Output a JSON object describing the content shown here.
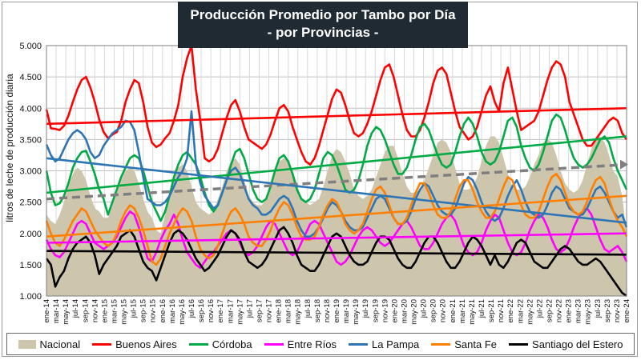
{
  "title": {
    "line1": "Producción Promedio por Tambo por Día",
    "line2": "- por Provincias -"
  },
  "chart_data": {
    "type": "line",
    "ylabel": "litros de leche de producción diaria",
    "ylim": [
      1000,
      5000
    ],
    "yticks": [
      1000,
      1500,
      2000,
      2500,
      3000,
      3500,
      4000,
      4500,
      5000
    ],
    "ytick_labels": [
      "1.000",
      "1.500",
      "2.000",
      "2.500",
      "3.000",
      "3.500",
      "4.000",
      "4.500",
      "5.000"
    ],
    "grid": true,
    "legend_position": "bottom",
    "x_tick_labels": [
      "ene-14",
      "mar-14",
      "may-14",
      "jul-14",
      "sep-14",
      "nov-14",
      "ene-15",
      "mar-15",
      "may-15",
      "jul-15",
      "sep-15",
      "nov-15",
      "ene-16",
      "mar-16",
      "may-16",
      "jul-16",
      "sep-16",
      "nov-16",
      "ene-17",
      "mar-17",
      "may-17",
      "jul-17",
      "sep-17",
      "nov-17",
      "ene-18",
      "mar-18",
      "may-18",
      "jul-18",
      "sep-18",
      "nov-18",
      "ene-19",
      "mar-19",
      "may-19",
      "jul-19",
      "sep-19",
      "nov-19",
      "ene-20",
      "mar-20",
      "may-20",
      "jul-20",
      "sep-20",
      "nov-20",
      "ene-21",
      "mar-21",
      "may-21",
      "jul-21",
      "sep-21",
      "nov-21",
      "ene-22",
      "mar-22",
      "may-22",
      "jul-22",
      "sep-22",
      "nov-22",
      "ene-23",
      "mar-23",
      "may-23",
      "jul-23",
      "sep-23",
      "nov-23",
      "ene-24"
    ],
    "series": [
      {
        "name": "Nacional",
        "kind": "area",
        "color": "#cdc5ac",
        "trend": {
          "start": 2550,
          "end": 3100,
          "color": "#7f7f7f",
          "dashed": true
        },
        "values": [
          2300,
          2200,
          2150,
          2300,
          2500,
          2750,
          2950,
          3050,
          3000,
          2850,
          2600,
          2400,
          2350,
          2250,
          2250,
          2450,
          2650,
          2850,
          3000,
          3050,
          3000,
          2800,
          2550,
          2350,
          2250,
          2050,
          2000,
          2300,
          2550,
          2850,
          3050,
          3100,
          3000,
          2750,
          2500,
          2400,
          2350,
          2300,
          2350,
          2550,
          2750,
          3000,
          3150,
          3200,
          3100,
          2850,
          2600,
          2500,
          2450,
          2450,
          2550,
          2800,
          2950,
          3150,
          3200,
          3150,
          3000,
          2800,
          2550,
          2500,
          2450,
          2500,
          2550,
          2750,
          3000,
          3250,
          3350,
          3300,
          3150,
          2950,
          2700,
          2600,
          2550,
          2600,
          2700,
          2900,
          3100,
          3300,
          3400,
          3400,
          3200,
          2950,
          2750,
          2650,
          2650,
          2700,
          2850,
          3050,
          3250,
          3450,
          3500,
          3450,
          3300,
          3050,
          2800,
          2700,
          2700,
          2750,
          2900,
          3150,
          3400,
          3550,
          3550,
          3450,
          3200,
          2950,
          2750,
          2700,
          2700,
          2750,
          2900,
          3100,
          3250,
          3450,
          3500,
          3450,
          3250,
          3000,
          2800,
          2700,
          2650,
          2700,
          2850,
          3100,
          3350,
          3500,
          3550,
          3450,
          3250,
          3000,
          2900,
          2600,
          2000
        ]
      },
      {
        "name": "Buenos Aires",
        "kind": "line",
        "color": "#ff0000",
        "trend": {
          "start": 3750,
          "end": 4000
        },
        "values": [
          3980,
          3680,
          3670,
          3650,
          3720,
          3880,
          4100,
          4300,
          4450,
          4500,
          4330,
          4100,
          3820,
          3620,
          3520,
          3580,
          3620,
          3800,
          4100,
          4300,
          4450,
          4400,
          4100,
          3700,
          3450,
          3380,
          3420,
          3520,
          3600,
          3800,
          4050,
          4500,
          4800,
          5000,
          4300,
          3800,
          3200,
          3150,
          3200,
          3350,
          3600,
          3850,
          4050,
          4130,
          3950,
          3700,
          3500,
          3450,
          3400,
          3350,
          3420,
          3580,
          3800,
          4000,
          4050,
          3950,
          3700,
          3500,
          3300,
          3150,
          3100,
          3200,
          3400,
          3650,
          3900,
          4150,
          4300,
          4250,
          4050,
          3800,
          3600,
          3550,
          3600,
          3750,
          3950,
          4200,
          4450,
          4650,
          4700,
          4500,
          4200,
          3900,
          3650,
          3550,
          3550,
          3650,
          3850,
          4100,
          4400,
          4600,
          4650,
          4550,
          4250,
          3950,
          3700,
          3600,
          3500,
          3550,
          3700,
          3950,
          4200,
          4350,
          4100,
          3950,
          4400,
          4650,
          4300,
          3950,
          3650,
          3700,
          3750,
          3800,
          3950,
          4200,
          4450,
          4650,
          4750,
          4700,
          4500,
          4100,
          3900,
          3700,
          3500,
          3400,
          3400,
          3500,
          3600,
          3700,
          3800,
          3850,
          3800,
          3600,
          3500
        ]
      },
      {
        "name": "Córdoba",
        "kind": "line",
        "color": "#00aa44",
        "trend": {
          "start": 2650,
          "end": 3550
        },
        "values": [
          3000,
          2650,
          2450,
          2480,
          2600,
          2800,
          3050,
          3200,
          3300,
          3320,
          3150,
          2950,
          2700,
          2550,
          2300,
          2500,
          2700,
          2900,
          3050,
          3200,
          3250,
          3200,
          3000,
          2750,
          2500,
          2350,
          2200,
          2350,
          2600,
          2900,
          3100,
          3250,
          3300,
          3200,
          3100,
          2900,
          2650,
          2450,
          2350,
          2450,
          2650,
          2850,
          3100,
          3300,
          3350,
          3200,
          2950,
          2700,
          2550,
          2500,
          2550,
          2750,
          3000,
          3200,
          3250,
          3150,
          2950,
          2700,
          2550,
          2500,
          2550,
          2700,
          2950,
          3200,
          3300,
          3250,
          3100,
          2900,
          2700,
          2650,
          2700,
          2850,
          3100,
          3400,
          3600,
          3700,
          3650,
          3500,
          3300,
          3100,
          2950,
          2950,
          3050,
          3250,
          3500,
          3700,
          3750,
          3650,
          3450,
          3250,
          3100,
          3050,
          3100,
          3300,
          3550,
          3750,
          3850,
          3750,
          3550,
          3300,
          3150,
          3100,
          3150,
          3300,
          3550,
          3800,
          3850,
          3700,
          3400,
          3200,
          3050,
          3000,
          3100,
          3300,
          3550,
          3800,
          3900,
          3850,
          3650,
          3400,
          3200,
          3100,
          3050,
          3100,
          3200,
          3350,
          3500,
          3550,
          3450,
          3200,
          3000,
          2850,
          2700
        ]
      },
      {
        "name": "Entre Ríos",
        "kind": "line",
        "color": "#ff00ff",
        "trend": {
          "start": 1850,
          "end": 2000
        },
        "values": [
          1900,
          1750,
          1650,
          1620,
          1700,
          1850,
          2000,
          2150,
          2200,
          2150,
          2000,
          1850,
          1800,
          1750,
          1800,
          1850,
          1950,
          2100,
          2250,
          2350,
          2300,
          2100,
          1850,
          1600,
          1550,
          1700,
          1900,
          2050,
          2150,
          2300,
          2150,
          1900,
          1700,
          1600,
          1500,
          1450,
          1550,
          1650,
          1700,
          1800,
          1900,
          2000,
          2050,
          2000,
          1850,
          1700,
          1650,
          1700,
          1800,
          1950,
          2100,
          2200,
          2150,
          2000,
          1850,
          1700,
          1650,
          1700,
          1850,
          2000,
          2150,
          2200,
          2150,
          2000,
          1850,
          1700,
          1550,
          1500,
          1550,
          1650,
          1800,
          1950,
          2050,
          2100,
          2050,
          1950,
          1850,
          1800,
          1850,
          1950,
          2050,
          2150,
          2200,
          2100,
          1950,
          1800,
          1750,
          1750,
          1850,
          2000,
          2150,
          2250,
          2300,
          2200,
          2000,
          1800,
          1700,
          1650,
          1700,
          1850,
          2050,
          2200,
          2300,
          2250,
          2050,
          1850,
          1700,
          1650,
          1700,
          1850,
          2050,
          2200,
          2300,
          2250,
          2100,
          1900,
          1750,
          1700,
          1750,
          1900,
          2100,
          2250,
          2350,
          2400,
          2300,
          2100,
          1900,
          1750,
          1700,
          1750,
          1800,
          1700,
          1550
        ]
      },
      {
        "name": "La Pampa",
        "kind": "line",
        "color": "#2e75b6",
        "trend": {
          "start": 3200,
          "end": 2170
        },
        "values": [
          3420,
          3250,
          3150,
          3200,
          3350,
          3500,
          3600,
          3650,
          3600,
          3500,
          3300,
          3200,
          3250,
          3400,
          3500,
          3600,
          3650,
          3700,
          3800,
          3780,
          3650,
          3300,
          2900,
          2550,
          2500,
          2450,
          2450,
          2500,
          2600,
          2750,
          2900,
          3000,
          3200,
          3950,
          3100,
          2800,
          2600,
          2500,
          2400,
          2450,
          2650,
          2850,
          3000,
          3050,
          2950,
          2750,
          2550,
          2450,
          2400,
          2300,
          2300,
          2350,
          2450,
          2550,
          2600,
          2550,
          2400,
          2200,
          2050,
          1950,
          1950,
          2000,
          2100,
          2250,
          2400,
          2500,
          2450,
          2350,
          2200,
          2100,
          2050,
          2050,
          2100,
          2250,
          2400,
          2550,
          2600,
          2550,
          2400,
          2250,
          2150,
          2150,
          2200,
          2350,
          2550,
          2700,
          2800,
          2750,
          2600,
          2450,
          2350,
          2300,
          2300,
          2400,
          2600,
          2800,
          2900,
          2850,
          2700,
          2500,
          2350,
          2250,
          2200,
          2250,
          2400,
          2600,
          2750,
          2850,
          2700,
          2500,
          2350,
          2300,
          2250,
          2300,
          2450,
          2650,
          2750,
          2700,
          2550,
          2400,
          2350,
          2300,
          2300,
          2400,
          2550,
          2700,
          2750,
          2650,
          2500,
          2350,
          2250,
          2300,
          2100
        ]
      },
      {
        "name": "Santa Fe",
        "kind": "line",
        "color": "#ff8000",
        "trend": {
          "start": 1950,
          "end": 2600
        },
        "values": [
          2200,
          2000,
          1850,
          1800,
          1900,
          2050,
          2200,
          2300,
          2400,
          2350,
          2200,
          2050,
          1950,
          1850,
          1800,
          1850,
          2000,
          2200,
          2350,
          2450,
          2400,
          2250,
          2050,
          1800,
          1550,
          1500,
          1600,
          1800,
          2000,
          2150,
          2300,
          2400,
          2350,
          2200,
          1950,
          1750,
          1650,
          1600,
          1650,
          1800,
          2000,
          2200,
          2350,
          2400,
          2300,
          2150,
          1950,
          1850,
          1800,
          1800,
          1900,
          2050,
          2250,
          2400,
          2500,
          2450,
          2300,
          2100,
          1950,
          1900,
          1900,
          1950,
          2100,
          2300,
          2450,
          2550,
          2500,
          2350,
          2150,
          2050,
          2000,
          2050,
          2150,
          2350,
          2550,
          2700,
          2750,
          2650,
          2450,
          2250,
          2150,
          2150,
          2250,
          2450,
          2650,
          2800,
          2800,
          2650,
          2450,
          2300,
          2250,
          2250,
          2350,
          2550,
          2750,
          2850,
          2850,
          2700,
          2500,
          2350,
          2250,
          2250,
          2350,
          2550,
          2750,
          2900,
          2850,
          2650,
          2450,
          2300,
          2250,
          2250,
          2350,
          2550,
          2750,
          2900,
          2950,
          2850,
          2650,
          2450,
          2350,
          2300,
          2350,
          2500,
          2700,
          2850,
          2900,
          2800,
          2550,
          2350,
          2200,
          2100,
          1950
        ]
      },
      {
        "name": "Santiago del Estero",
        "kind": "line",
        "color": "#000000",
        "trend": {
          "start": 1720,
          "end": 1660
        },
        "values": [
          1600,
          1500,
          1150,
          1300,
          1400,
          1600,
          1750,
          1850,
          1900,
          1950,
          1850,
          1650,
          1350,
          1500,
          1600,
          1700,
          1800,
          1950,
          2000,
          2050,
          1950,
          1750,
          1550,
          1450,
          1400,
          1250,
          1450,
          1650,
          1850,
          2000,
          2050,
          2000,
          1900,
          1750,
          1600,
          1500,
          1400,
          1450,
          1550,
          1650,
          1800,
          1950,
          2050,
          2000,
          1900,
          1700,
          1550,
          1500,
          1450,
          1500,
          1600,
          1750,
          1900,
          2050,
          2100,
          2000,
          1850,
          1650,
          1500,
          1450,
          1400,
          1400,
          1500,
          1650,
          1800,
          1950,
          2000,
          1950,
          1800,
          1650,
          1550,
          1500,
          1500,
          1550,
          1700,
          1850,
          1950,
          1950,
          1900,
          1750,
          1600,
          1500,
          1450,
          1450,
          1550,
          1700,
          1850,
          1950,
          1950,
          1850,
          1700,
          1550,
          1450,
          1450,
          1550,
          1700,
          1850,
          1950,
          1900,
          1800,
          1650,
          1500,
          1650,
          1500,
          1450,
          1550,
          1700,
          1850,
          1900,
          1850,
          1700,
          1550,
          1500,
          1450,
          1450,
          1550,
          1650,
          1750,
          1800,
          1750,
          1650,
          1550,
          1500,
          1500,
          1550,
          1600,
          1550,
          1450,
          1350,
          1250,
          1150,
          1050,
          1000
        ]
      }
    ]
  }
}
